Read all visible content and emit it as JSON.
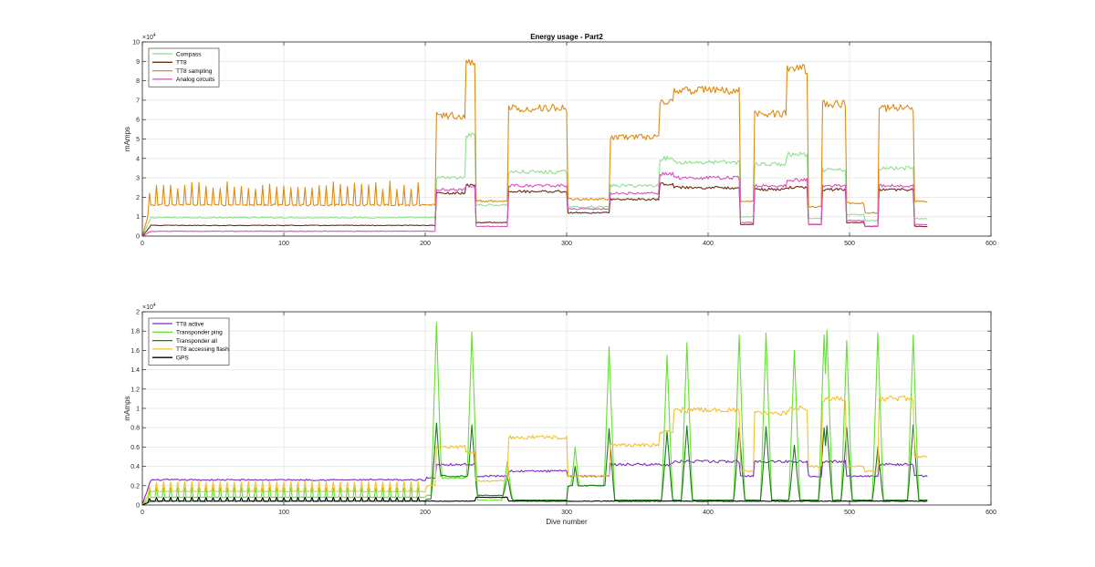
{
  "chart_data": [
    {
      "type": "line",
      "title": "Energy usage - Part2",
      "xlabel": "",
      "ylabel": "mAmps",
      "exponent_label": "×10",
      "exponent_power": "4",
      "xlim": [
        0,
        600
      ],
      "ylim": [
        0,
        10
      ],
      "xticks": [
        "0",
        "100",
        "200",
        "300",
        "400",
        "500",
        "600"
      ],
      "yticks": [
        "0",
        "1",
        "2",
        "3",
        "4",
        "5",
        "6",
        "7",
        "8",
        "9",
        "10"
      ],
      "grid": true,
      "legend_position": "top-left",
      "phase_segments": [
        [
          0,
          200
        ],
        [
          200,
          207
        ],
        [
          207,
          228
        ],
        [
          228,
          235
        ],
        [
          235,
          258
        ],
        [
          258,
          300
        ],
        [
          300,
          330
        ],
        [
          330,
          365
        ],
        [
          365,
          375
        ],
        [
          375,
          422
        ],
        [
          422,
          432
        ],
        [
          432,
          455
        ],
        [
          455,
          470
        ],
        [
          470,
          480
        ],
        [
          480,
          497
        ],
        [
          497,
          510
        ],
        [
          510,
          520
        ],
        [
          520,
          545
        ],
        [
          545,
          555
        ]
      ],
      "series": [
        {
          "name": "Compass",
          "color": "#8fe08f",
          "phase_values": [
            0.95,
            0.95,
            3.0,
            5.2,
            1.6,
            3.3,
            1.5,
            2.6,
            4.0,
            3.8,
            1.0,
            3.7,
            4.2,
            0.9,
            3.4,
            1.1,
            0.8,
            3.5,
            0.9
          ]
        },
        {
          "name": "TT8",
          "color": "#6b2b12",
          "phase_values": [
            0.55,
            0.55,
            2.2,
            2.6,
            0.7,
            2.3,
            1.2,
            1.9,
            2.7,
            2.5,
            0.6,
            2.4,
            2.5,
            0.6,
            2.4,
            0.7,
            0.5,
            2.4,
            0.5
          ]
        },
        {
          "name": "TT8 sampling",
          "color": "#e08a12",
          "phase_values": [
            1.6,
            1.6,
            6.2,
            8.9,
            1.8,
            6.6,
            1.9,
            5.1,
            6.9,
            7.5,
            1.8,
            6.3,
            8.6,
            1.5,
            6.8,
            1.7,
            1.2,
            6.6,
            1.8
          ]
        },
        {
          "name": "Analog circuits",
          "color": "#d94fc2",
          "phase_values": [
            0.25,
            0.25,
            2.4,
            2.6,
            0.5,
            2.6,
            1.4,
            2.2,
            3.2,
            3.0,
            0.7,
            2.6,
            2.9,
            0.6,
            2.6,
            0.8,
            0.5,
            2.6,
            0.6
          ]
        }
      ]
    },
    {
      "type": "line",
      "title": "",
      "xlabel": "Dive number",
      "ylabel": "mAmps",
      "exponent_label": "×10",
      "exponent_power": "4",
      "xlim": [
        0,
        600
      ],
      "ylim": [
        0,
        2
      ],
      "xticks": [
        "0",
        "100",
        "200",
        "300",
        "400",
        "500",
        "600"
      ],
      "yticks": [
        "0",
        "0.2",
        "0.4",
        "0.6",
        "0.8",
        "1",
        "1.2",
        "1.4",
        "1.6",
        "1.8",
        "2"
      ],
      "grid": true,
      "legend_position": "top-left",
      "phase_segments": [
        [
          0,
          200
        ],
        [
          200,
          207
        ],
        [
          207,
          228
        ],
        [
          228,
          235
        ],
        [
          235,
          258
        ],
        [
          258,
          300
        ],
        [
          300,
          330
        ],
        [
          330,
          365
        ],
        [
          365,
          375
        ],
        [
          375,
          422
        ],
        [
          422,
          432
        ],
        [
          432,
          455
        ],
        [
          455,
          470
        ],
        [
          470,
          480
        ],
        [
          480,
          497
        ],
        [
          497,
          510
        ],
        [
          510,
          520
        ],
        [
          520,
          545
        ],
        [
          545,
          555
        ]
      ],
      "spikes": [
        208,
        233,
        258,
        306,
        330,
        371,
        385,
        422,
        441,
        461,
        482,
        484,
        498,
        520,
        545
      ],
      "series": [
        {
          "name": "TT8 active",
          "color": "#7b2fbf",
          "phase_values": [
            0.26,
            0.28,
            0.42,
            0.42,
            0.3,
            0.35,
            0.3,
            0.42,
            0.42,
            0.45,
            0.3,
            0.45,
            0.45,
            0.3,
            0.45,
            0.3,
            0.3,
            0.42,
            0.3
          ]
        },
        {
          "name": "Transponder ping",
          "color": "#66e033",
          "phase_values": [
            0.08,
            0.1,
            0.28,
            0.3,
            0.05,
            0.05,
            0.2,
            0.05,
            0.05,
            0.05,
            0.05,
            0.05,
            0.05,
            0.05,
            0.05,
            0.05,
            0.05,
            0.05,
            0.05
          ],
          "spike_peaks": [
            1.89,
            1.79,
            0.45,
            0.6,
            1.64,
            1.55,
            1.68,
            1.76,
            1.78,
            1.6,
            1.76,
            1.81,
            1.7,
            1.78,
            1.76
          ]
        },
        {
          "name": "Transponder all",
          "color": "#1f7a1f",
          "phase_values": [
            0.04,
            0.06,
            0.3,
            0.3,
            0.1,
            0.05,
            0.2,
            0.05,
            0.05,
            0.05,
            0.05,
            0.05,
            0.05,
            0.05,
            0.05,
            0.05,
            0.05,
            0.05,
            0.05
          ],
          "spike_peaks": [
            0.85,
            0.83,
            0.3,
            0.4,
            0.79,
            0.76,
            0.82,
            0.8,
            0.81,
            0.62,
            0.8,
            0.82,
            0.8,
            0.6,
            0.83
          ]
        },
        {
          "name": "TT8 accessing flash",
          "color": "#f2c12e",
          "phase_values": [
            0.14,
            0.2,
            0.6,
            0.55,
            0.25,
            0.7,
            0.3,
            0.62,
            0.75,
            0.98,
            0.35,
            0.95,
            1.0,
            0.4,
            1.1,
            0.4,
            0.35,
            1.1,
            0.5
          ]
        },
        {
          "name": "GPS",
          "color": "#000000",
          "phase_values": [
            0.04,
            0.04,
            0.04,
            0.04,
            0.08,
            0.04,
            0.04,
            0.04,
            0.04,
            0.04,
            0.04,
            0.04,
            0.04,
            0.04,
            0.04,
            0.04,
            0.04,
            0.04,
            0.04
          ]
        }
      ]
    }
  ]
}
